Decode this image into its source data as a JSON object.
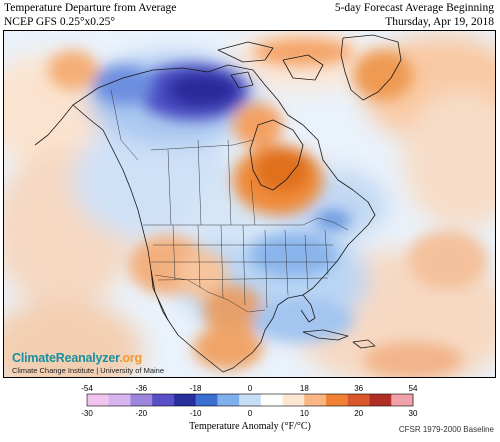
{
  "header": {
    "title_line1": "Temperature Departure from Average",
    "title_line2": "NCEP GFS 0.25°x0.25°",
    "forecast_line1": "5-day Forecast Average Beginning",
    "forecast_line2": "Thursday, Apr 19, 2018"
  },
  "logo": {
    "brand_main": "ClimateReanalyzer",
    "brand_suffix": ".org",
    "institution": "Climate Change Institute | University of Maine"
  },
  "legend": {
    "title": "Temperature Anomaly (°F/°C)",
    "f_ticks": [
      "-54",
      "-36",
      "-18",
      "0",
      "18",
      "36",
      "54"
    ],
    "c_ticks": [
      "-30",
      "-20",
      "-10",
      "0",
      "10",
      "20",
      "30"
    ],
    "colors": [
      "#f2c4f0",
      "#d7b3ef",
      "#9f86dd",
      "#5b4fc6",
      "#2a2f9e",
      "#3c6fd0",
      "#7fb0ee",
      "#c6ddf7",
      "#ffffff",
      "#fde7d2",
      "#f9b583",
      "#ef8135",
      "#d9572a",
      "#b03025",
      "#f0a0a8"
    ]
  },
  "footnote": "CFSR 1979-2000 Baseline",
  "map": {
    "ocean_color": "#eef4fb",
    "cold_core_color": "#2c2a9c",
    "warm_core_color": "#e0701e"
  }
}
